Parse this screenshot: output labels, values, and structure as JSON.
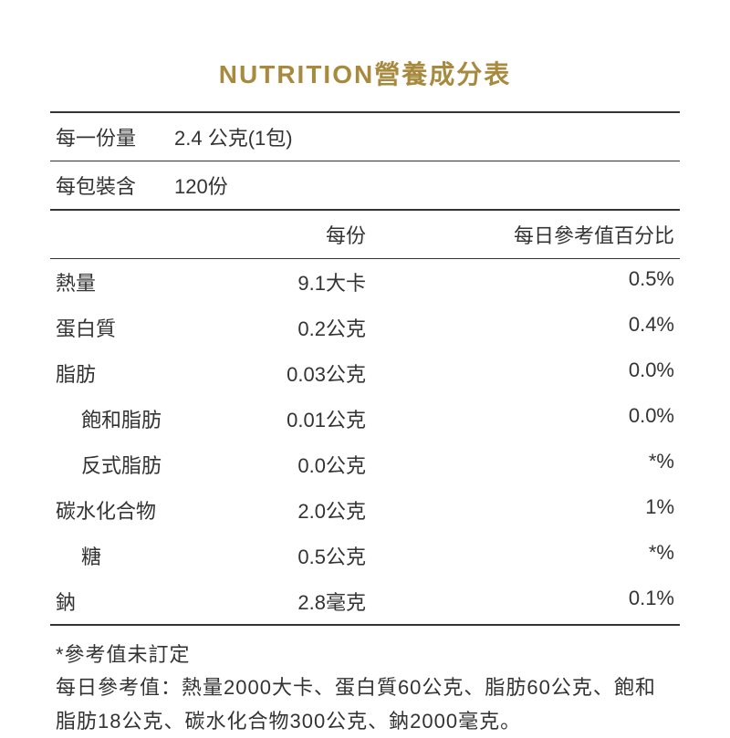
{
  "title": {
    "text": "NUTRITION營養成分表",
    "color": "#a88a3f",
    "fontsize": 28
  },
  "serving": {
    "size_label": "每一份量",
    "size_value": "2.4 公克(1包)",
    "per_container_label": "每包裝含",
    "per_container_value": "120份"
  },
  "columns": {
    "per_serving": "每份",
    "dv": "每日參考值百分比"
  },
  "rows": [
    {
      "name": "熱量",
      "amount": "9.1大卡",
      "dv": "0.5%",
      "indent": false
    },
    {
      "name": "蛋白質",
      "amount": "0.2公克",
      "dv": "0.4%",
      "indent": false
    },
    {
      "name": "脂肪",
      "amount": "0.03公克",
      "dv": "0.0%",
      "indent": false
    },
    {
      "name": "飽和脂肪",
      "amount": "0.01公克",
      "dv": "0.0%",
      "indent": true
    },
    {
      "name": "反式脂肪",
      "amount": "0.0公克",
      "dv": "*%",
      "indent": true
    },
    {
      "name": "碳水化合物",
      "amount": "2.0公克",
      "dv": "1%",
      "indent": false
    },
    {
      "name": "糖",
      "amount": "0.5公克",
      "dv": "*%",
      "indent": true
    },
    {
      "name": "鈉",
      "amount": "2.8毫克",
      "dv": "0.1%",
      "indent": false
    }
  ],
  "footnote": {
    "star": "*參考值未訂定",
    "reference": "每日參考值：熱量2000大卡、蛋白質60公克、脂肪60公克、飽和脂肪18公克、碳水化合物300公克、鈉2000毫克。"
  },
  "colors": {
    "text": "#333333",
    "rule": "#333333",
    "background": "#ffffff"
  }
}
